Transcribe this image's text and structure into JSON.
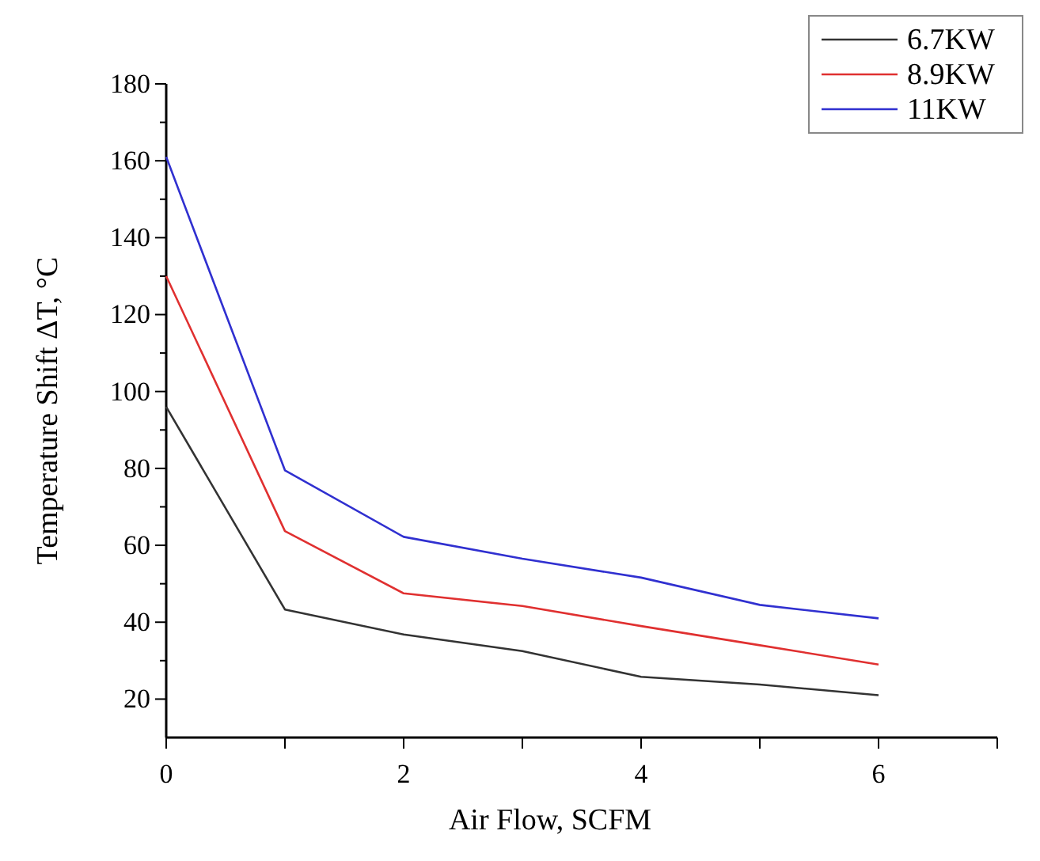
{
  "chart_data": {
    "type": "line",
    "xlabel": "Air Flow, SCFM",
    "ylabel": "Temperature Shift ΔT, °C",
    "x": [
      0,
      1,
      2,
      3,
      4,
      5,
      6
    ],
    "series": [
      {
        "name": "6.7KW",
        "color": "#333333",
        "values": [
          96,
          43.3,
          36.8,
          32.5,
          25.8,
          23.8,
          21
        ]
      },
      {
        "name": "8.9KW",
        "color": "#e03030",
        "values": [
          130,
          63.7,
          47.5,
          44.2,
          39,
          34,
          29
        ]
      },
      {
        "name": "11KW",
        "color": "#3030d0",
        "values": [
          161,
          79.5,
          62.2,
          56.5,
          51.6,
          44.5,
          41
        ]
      }
    ],
    "xlim": [
      0,
      7
    ],
    "xticks": [
      0,
      {
        "value": 1,
        "label": null
      },
      2,
      {
        "value": 3,
        "label": null
      },
      4,
      {
        "value": 5,
        "label": null
      },
      6,
      {
        "value": 7,
        "label": null
      }
    ],
    "ylim": [
      10,
      180
    ],
    "yticks": [
      20,
      40,
      60,
      80,
      100,
      120,
      140,
      160,
      180
    ],
    "legend": "top right",
    "grid": false,
    "marker": "none",
    "line_style": "solid"
  }
}
